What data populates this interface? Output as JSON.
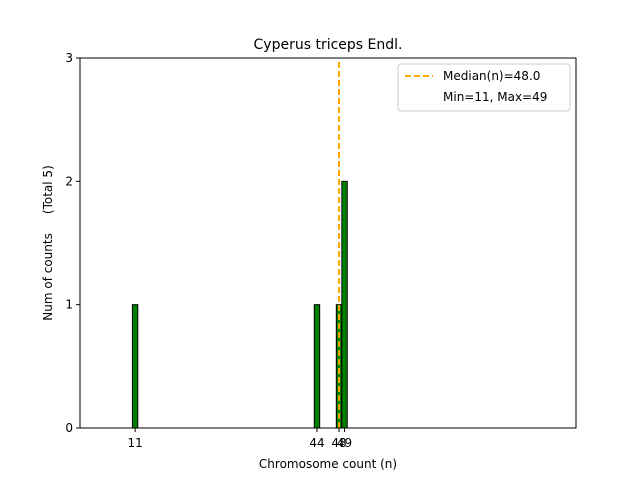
{
  "chart_data": {
    "type": "bar",
    "title": "Cyperus triceps Endl.",
    "xlabel": "Chromosome count (n)",
    "ylabel": "Num of counts     (Total 5)",
    "xlim": [
      1,
      91
    ],
    "ylim": [
      0,
      3
    ],
    "yticks": [
      0,
      1,
      2,
      3
    ],
    "xticks": [
      11,
      44,
      48,
      49
    ],
    "bars": [
      {
        "x": 11,
        "count": 1
      },
      {
        "x": 44,
        "count": 1
      },
      {
        "x": 48,
        "count": 1
      },
      {
        "x": 49,
        "count": 2
      }
    ],
    "bar_color": "#008000",
    "median": 48.0,
    "median_color": "#FFA500",
    "legend": {
      "position": "top-right",
      "entries": [
        "Median(n)=48.0",
        "Min=11, Max=49"
      ]
    },
    "grid": false
  }
}
